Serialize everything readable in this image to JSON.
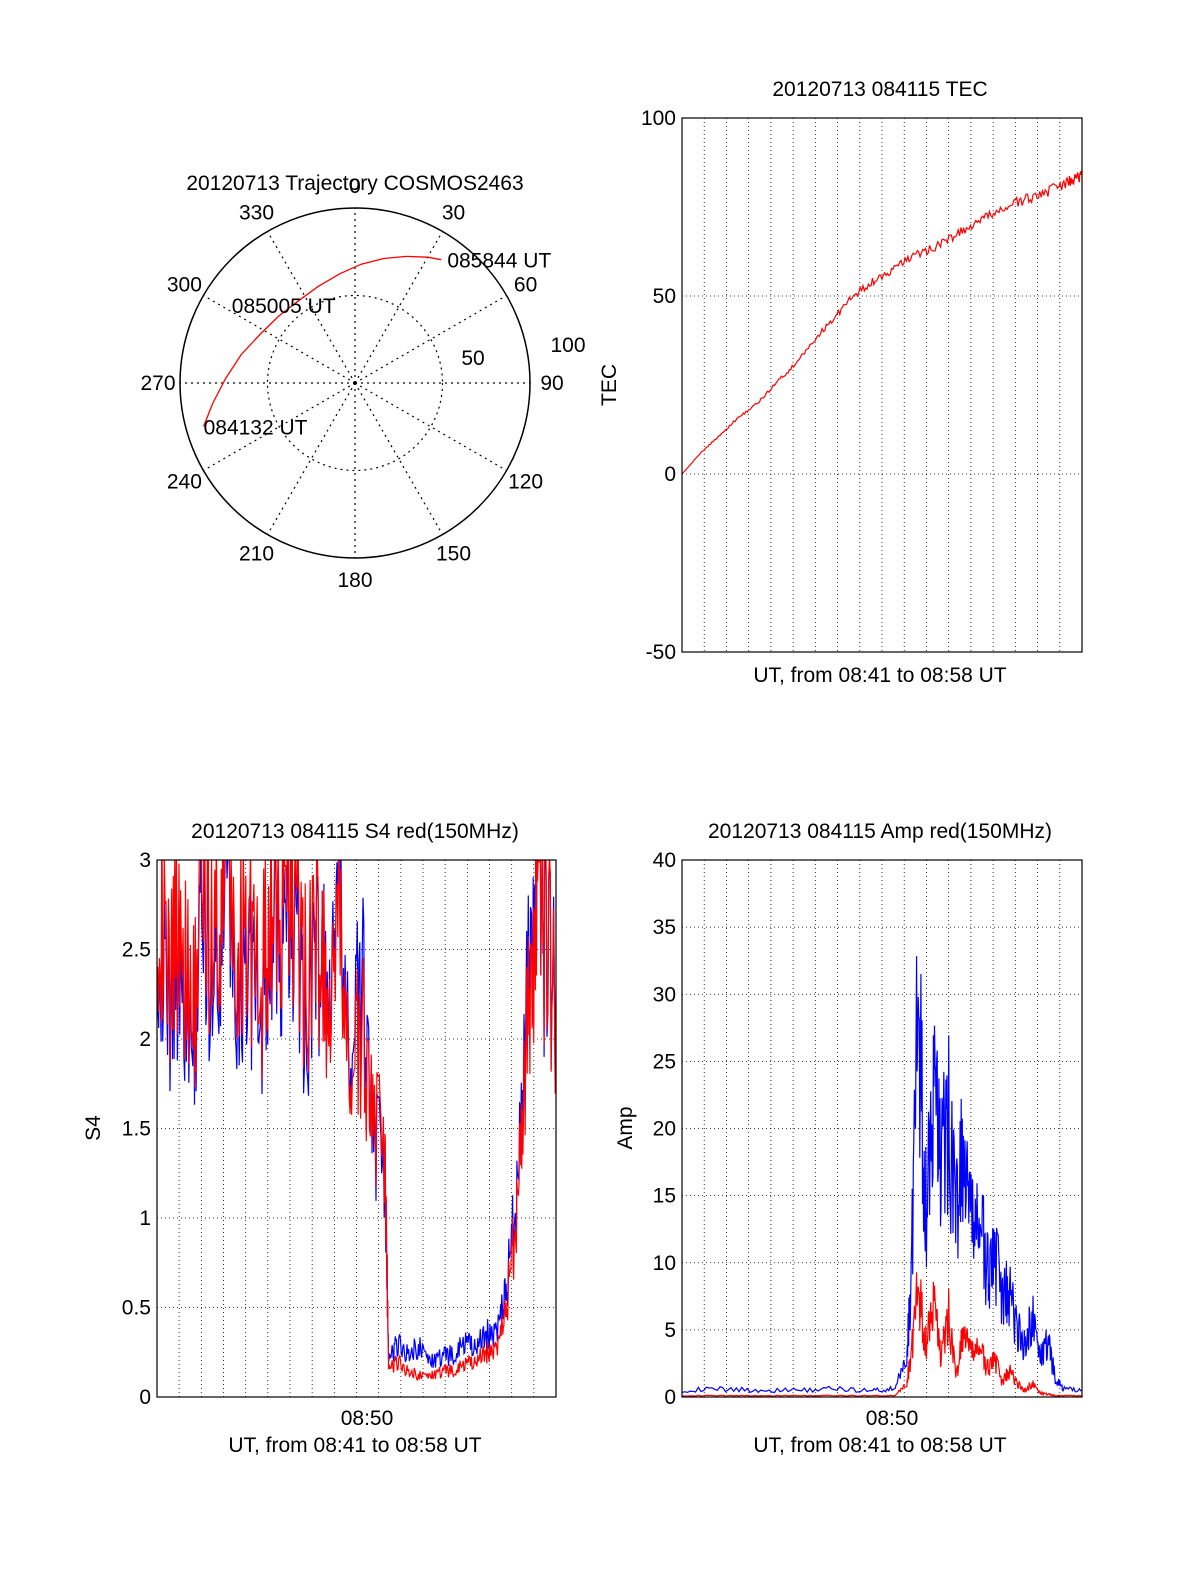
{
  "chart_data": [
    {
      "type": "polar",
      "title": "20120713 Trajectory COSMOS2463",
      "angle_labels": [
        "0",
        "30",
        "60",
        "90",
        "120",
        "150",
        "180",
        "210",
        "240",
        "270",
        "300",
        "330"
      ],
      "radial_labels": [
        "50",
        "100"
      ],
      "radial_max": 100,
      "grid": true,
      "series": [
        {
          "color": "#ff0000",
          "points": [
            {
              "az": 254,
              "r": 90
            },
            {
              "az": 262,
              "r": 82
            },
            {
              "az": 272,
              "r": 74
            },
            {
              "az": 284,
              "r": 67
            },
            {
              "az": 297,
              "r": 61
            },
            {
              "az": 311,
              "r": 58
            },
            {
              "az": 325,
              "r": 57
            },
            {
              "az": 339,
              "r": 59
            },
            {
              "az": 352,
              "r": 63
            },
            {
              "az": 3,
              "r": 68
            },
            {
              "az": 13,
              "r": 73
            },
            {
              "az": 22,
              "r": 78
            },
            {
              "az": 30,
              "r": 83
            },
            {
              "az": 35,
              "r": 86
            }
          ]
        }
      ],
      "annotations": [
        {
          "text": "084132 UT",
          "az": 254,
          "r": 90
        },
        {
          "text": "085005 UT",
          "az": 317,
          "r": 58
        },
        {
          "text": "085844 UT",
          "az": 35,
          "r": 86
        }
      ]
    },
    {
      "type": "line",
      "title": "20120713 084115 TEC",
      "xlabel": "UT, from 08:41 to 08:58 UT",
      "ylabel": "TEC",
      "xlim": [
        0,
        1050
      ],
      "ylim": [
        -50,
        100
      ],
      "yticks": [
        "-50",
        "0",
        "50",
        "100"
      ],
      "grid": true,
      "series": [
        {
          "color": "#ff0000",
          "x": [
            0,
            50,
            100,
            150,
            200,
            250,
            300,
            350,
            400,
            450,
            500,
            550,
            600,
            650,
            700,
            750,
            800,
            850,
            900,
            950,
            1000,
            1030,
            1050
          ],
          "y": [
            0,
            6,
            11,
            16,
            20,
            26,
            31,
            38,
            44,
            50,
            54,
            57,
            61,
            63,
            66,
            69,
            72,
            75,
            77,
            79,
            81,
            83,
            84
          ]
        }
      ]
    },
    {
      "type": "line",
      "title": "20120713 084115 S4 red(150MHz)",
      "xlabel": "UT, from 08:41 to 08:58 UT",
      "ylabel": "S4",
      "xlim": [
        0,
        1050
      ],
      "ylim": [
        0,
        3
      ],
      "xticks": [
        "08:50"
      ],
      "yticks": [
        "0",
        "0.5",
        "1",
        "1.5",
        "2",
        "2.5",
        "3"
      ],
      "grid": true,
      "series": [
        {
          "color": "#0000ff",
          "x": [
            0,
            30,
            60,
            90,
            120,
            150,
            180,
            210,
            240,
            270,
            300,
            330,
            360,
            390,
            420,
            450,
            480,
            510,
            540,
            570,
            600,
            610,
            630,
            660,
            690,
            720,
            750,
            780,
            810,
            840,
            870,
            900,
            920,
            940,
            960,
            980,
            1000,
            1020,
            1050
          ],
          "y": [
            2.8,
            2.1,
            2.6,
            1.9,
            2.7,
            2.3,
            2.9,
            2.2,
            2.6,
            2.0,
            2.8,
            2.4,
            2.7,
            2.1,
            2.5,
            2.2,
            2.6,
            1.9,
            2.3,
            1.5,
            1.2,
            0.2,
            0.3,
            0.25,
            0.28,
            0.2,
            0.22,
            0.24,
            0.3,
            0.28,
            0.35,
            0.4,
            0.6,
            1.0,
            1.6,
            2.4,
            2.8,
            2.5,
            2.3
          ]
        },
        {
          "color": "#ff0000",
          "x": [
            0,
            30,
            60,
            90,
            120,
            150,
            180,
            210,
            240,
            270,
            300,
            330,
            360,
            390,
            420,
            450,
            480,
            510,
            540,
            570,
            600,
            610,
            630,
            660,
            690,
            720,
            750,
            780,
            810,
            840,
            870,
            900,
            920,
            940,
            960,
            980,
            1000,
            1020,
            1050
          ],
          "y": [
            2.9,
            2.3,
            2.8,
            2.0,
            2.9,
            2.5,
            3.0,
            2.4,
            2.8,
            2.1,
            2.9,
            2.6,
            2.8,
            2.3,
            2.6,
            2.1,
            2.5,
            1.8,
            2.0,
            1.6,
            1.3,
            0.15,
            0.2,
            0.15,
            0.12,
            0.12,
            0.14,
            0.15,
            0.18,
            0.2,
            0.25,
            0.3,
            0.5,
            0.9,
            1.5,
            2.2,
            2.7,
            2.6,
            2.2
          ]
        }
      ]
    },
    {
      "type": "line",
      "title": "20120713 084115 Amp red(150MHz)",
      "xlabel": "UT, from 08:41 to 08:58 UT",
      "ylabel": "Amp",
      "xlim": [
        0,
        1050
      ],
      "ylim": [
        0,
        40
      ],
      "xticks": [
        "08:50"
      ],
      "yticks": [
        "0",
        "5",
        "10",
        "15",
        "20",
        "25",
        "30",
        "35",
        "40"
      ],
      "grid": true,
      "series": [
        {
          "color": "#0000ff",
          "x": [
            0,
            100,
            200,
            300,
            400,
            500,
            560,
            590,
            600,
            620,
            640,
            660,
            680,
            700,
            720,
            740,
            760,
            780,
            800,
            820,
            840,
            860,
            880,
            900,
            920,
            940,
            960,
            980,
            1000,
            1050
          ],
          "y": [
            0.5,
            0.6,
            0.5,
            0.5,
            0.6,
            0.5,
            0.6,
            3.0,
            8.0,
            29.0,
            14.0,
            22.0,
            18.0,
            20.0,
            14.0,
            18.0,
            12.0,
            14.0,
            9.0,
            11.0,
            7.0,
            8.0,
            5.0,
            4.0,
            6.0,
            3.0,
            4.0,
            1.5,
            0.6,
            0.5
          ]
        },
        {
          "color": "#ff0000",
          "x": [
            0,
            100,
            200,
            300,
            400,
            500,
            560,
            590,
            600,
            620,
            640,
            660,
            680,
            700,
            720,
            740,
            760,
            780,
            800,
            820,
            840,
            860,
            880,
            900,
            920,
            940,
            960,
            980,
            1000,
            1050
          ],
          "y": [
            0.1,
            0.1,
            0.1,
            0.1,
            0.1,
            0.1,
            0.1,
            1.0,
            3.0,
            8.0,
            4.0,
            7.0,
            3.0,
            6.0,
            1.5,
            5.0,
            3.0,
            4.0,
            2.0,
            3.0,
            1.0,
            2.0,
            1.0,
            0.5,
            1.0,
            0.3,
            0.2,
            0.1,
            0.1,
            0.1
          ]
        }
      ]
    }
  ]
}
